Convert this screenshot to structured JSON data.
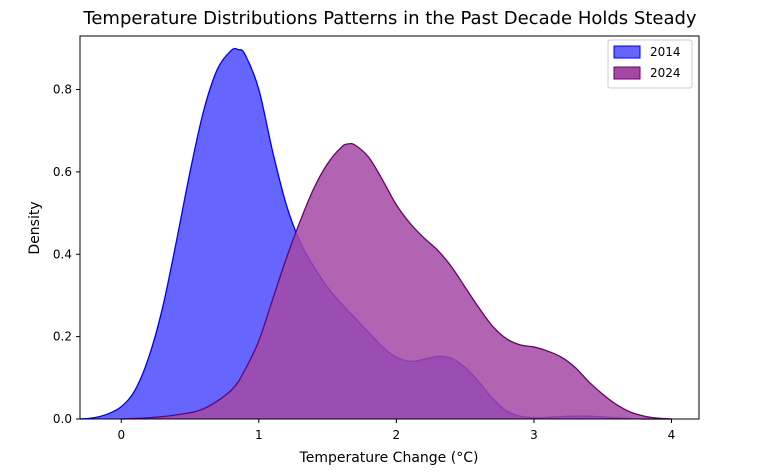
{
  "chart_data": {
    "type": "area",
    "title": "Temperature Distributions Patterns in the Past Decade Holds Steady",
    "xlabel": "Temperature Change (°C)",
    "ylabel": "Density",
    "xlim": [
      -0.3,
      4.2
    ],
    "ylim": [
      0,
      0.93
    ],
    "x_ticks": [
      0,
      1,
      2,
      3,
      4
    ],
    "y_ticks": [
      0.0,
      0.2,
      0.4,
      0.6,
      0.8
    ],
    "x_tick_labels": [
      "0",
      "1",
      "2",
      "3",
      "4"
    ],
    "y_tick_labels": [
      "0.0",
      "0.2",
      "0.4",
      "0.6",
      "0.8"
    ],
    "grid": false,
    "legend_position": "top-right",
    "series": [
      {
        "name": "2014",
        "fill_color": "#6666ff",
        "line_color": "#0000ee",
        "x": [
          -0.3,
          -0.2,
          -0.1,
          0.0,
          0.1,
          0.2,
          0.3,
          0.4,
          0.5,
          0.6,
          0.7,
          0.8,
          0.85,
          0.9,
          1.0,
          1.1,
          1.2,
          1.3,
          1.4,
          1.5,
          1.6,
          1.7,
          1.8,
          1.9,
          2.0,
          2.1,
          2.2,
          2.3,
          2.4,
          2.5,
          2.6,
          2.7,
          2.8,
          2.9,
          3.0,
          3.1,
          3.2,
          3.3,
          3.4,
          3.5,
          3.6,
          3.7,
          3.8,
          3.9,
          4.0
        ],
        "y": [
          0.0,
          0.003,
          0.012,
          0.03,
          0.07,
          0.15,
          0.27,
          0.43,
          0.6,
          0.75,
          0.85,
          0.895,
          0.897,
          0.885,
          0.8,
          0.65,
          0.52,
          0.43,
          0.37,
          0.32,
          0.28,
          0.245,
          0.21,
          0.175,
          0.15,
          0.14,
          0.145,
          0.152,
          0.148,
          0.125,
          0.09,
          0.05,
          0.02,
          0.007,
          0.003,
          0.004,
          0.006,
          0.007,
          0.007,
          0.005,
          0.003,
          0.001,
          0.0,
          0.0,
          0.0
        ]
      },
      {
        "name": "2024",
        "fill_color": "#a349a4",
        "line_color": "#6a006a",
        "x": [
          0.0,
          0.2,
          0.4,
          0.6,
          0.8,
          0.9,
          1.0,
          1.1,
          1.2,
          1.3,
          1.4,
          1.5,
          1.6,
          1.65,
          1.7,
          1.8,
          1.9,
          2.0,
          2.1,
          2.2,
          2.3,
          2.4,
          2.5,
          2.6,
          2.7,
          2.8,
          2.9,
          3.0,
          3.1,
          3.2,
          3.3,
          3.4,
          3.5,
          3.6,
          3.7,
          3.8,
          3.9,
          4.0
        ],
        "y": [
          0.0,
          0.003,
          0.01,
          0.025,
          0.07,
          0.12,
          0.19,
          0.29,
          0.39,
          0.48,
          0.56,
          0.62,
          0.66,
          0.668,
          0.665,
          0.635,
          0.58,
          0.52,
          0.475,
          0.44,
          0.41,
          0.37,
          0.32,
          0.27,
          0.225,
          0.195,
          0.18,
          0.175,
          0.165,
          0.15,
          0.125,
          0.09,
          0.06,
          0.035,
          0.017,
          0.007,
          0.002,
          0.0
        ]
      }
    ]
  }
}
